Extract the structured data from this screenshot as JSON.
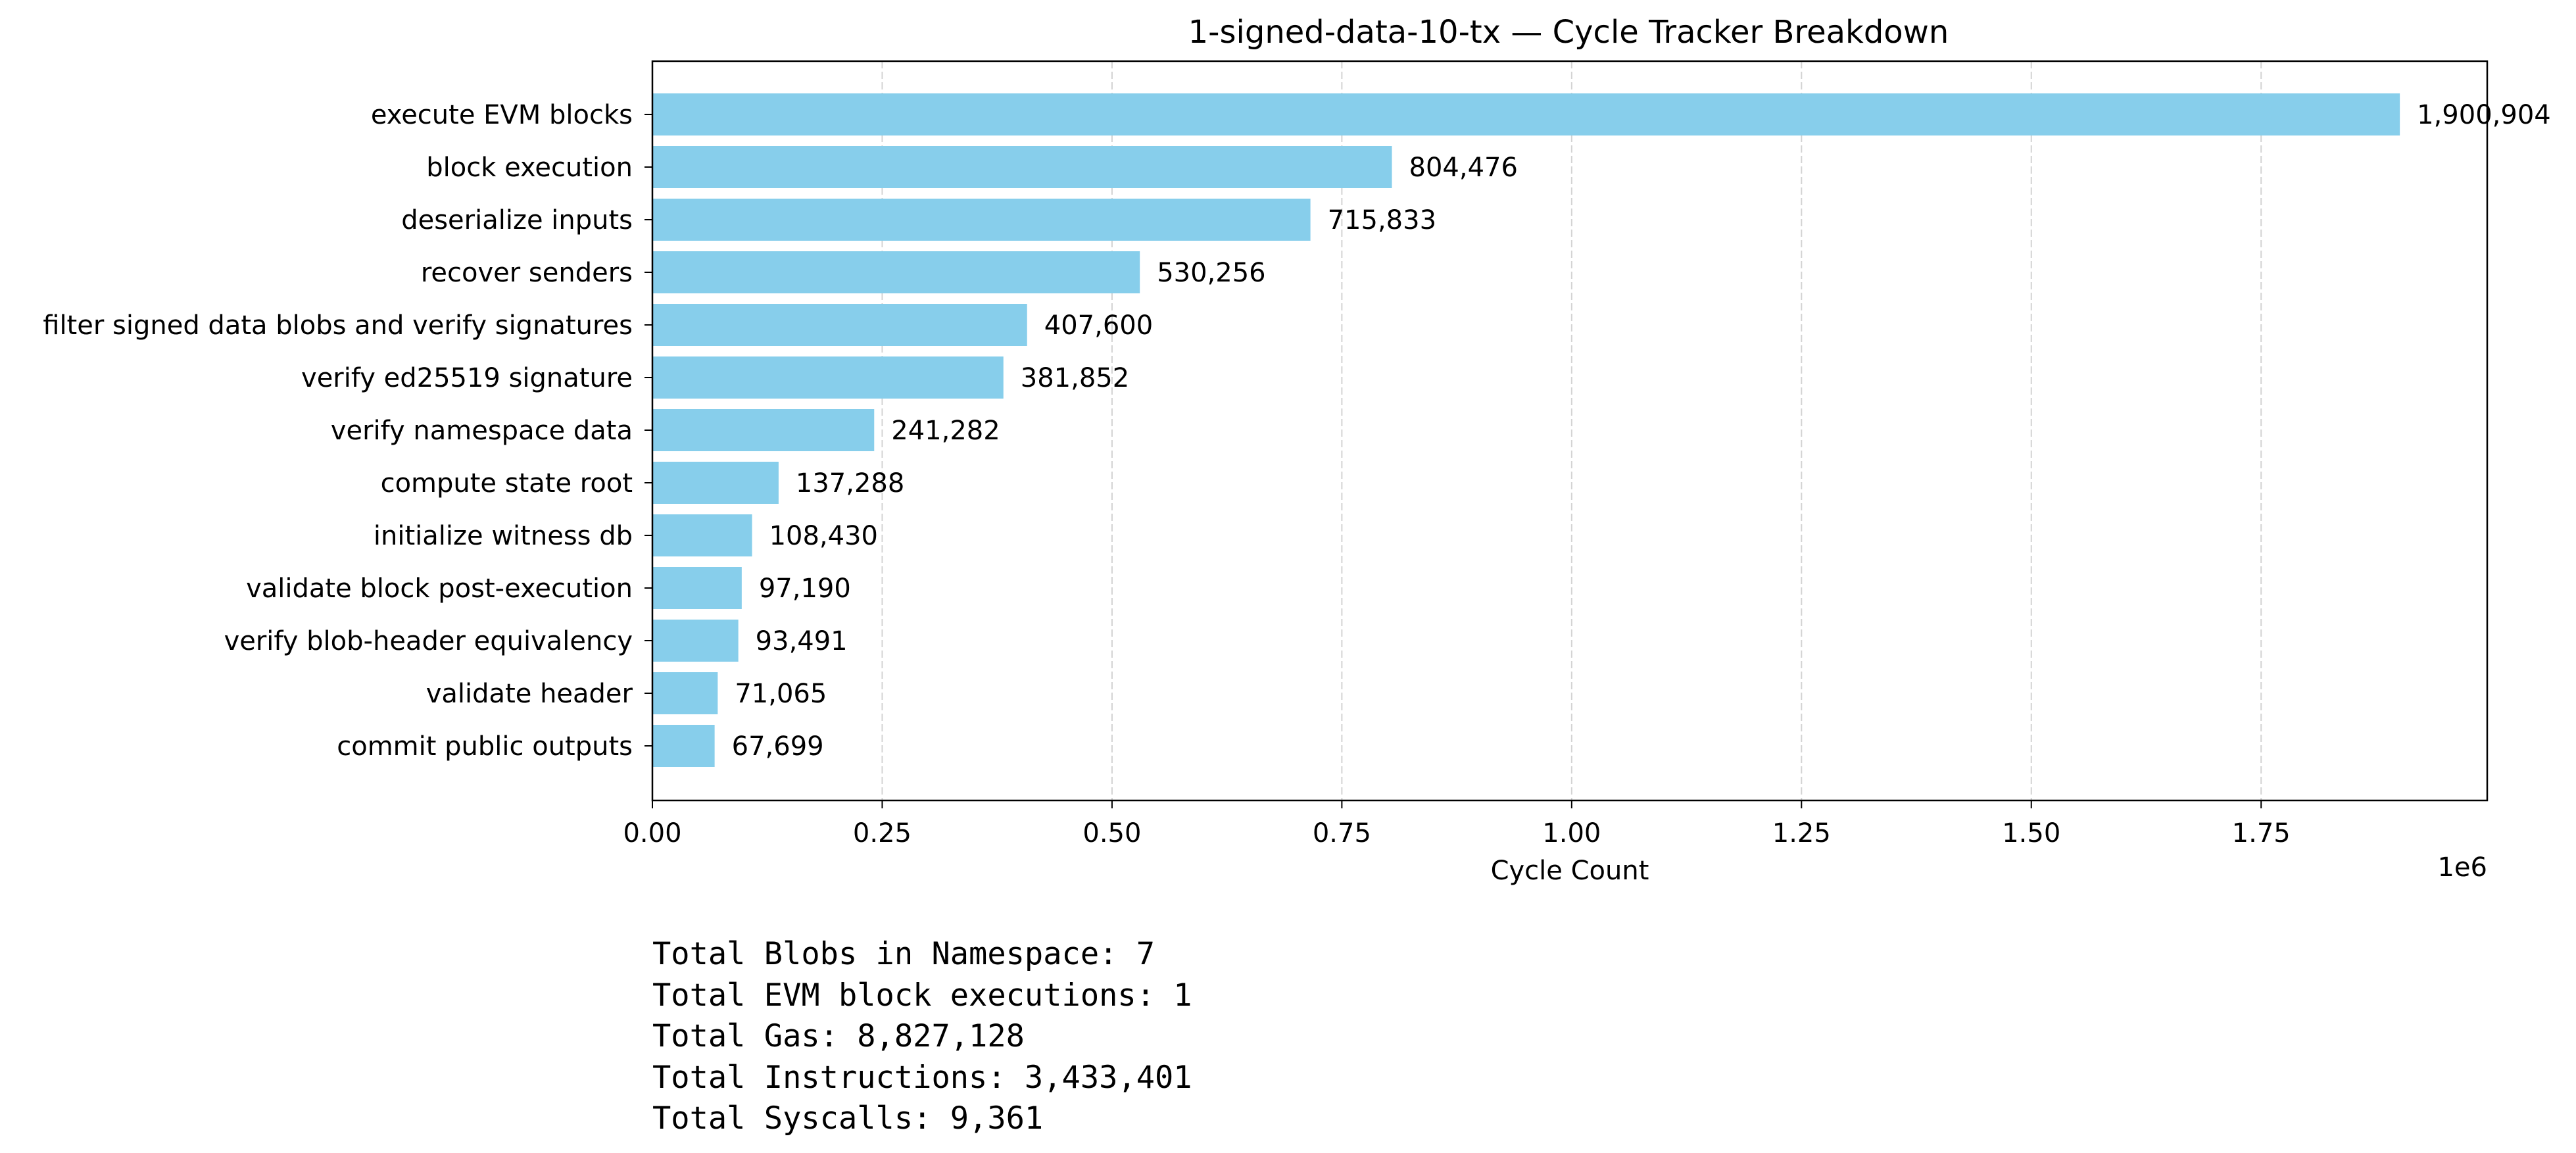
{
  "chart_data": {
    "type": "bar",
    "orientation": "horizontal",
    "title": "1-signed-data-10-tx — Cycle Tracker Breakdown",
    "xlabel": "Cycle Count",
    "ylabel": "",
    "x_offset_text": "1e6",
    "xlim": [
      0,
      1995949
    ],
    "x_ticks": [
      0,
      250000,
      500000,
      750000,
      1000000,
      1250000,
      1500000,
      1750000
    ],
    "x_tick_labels": [
      "0.00",
      "0.25",
      "0.50",
      "0.75",
      "1.00",
      "1.25",
      "1.50",
      "1.75"
    ],
    "grid": "vertical dashed",
    "bar_color": "#87ceeb",
    "categories": [
      "execute EVM blocks",
      "block execution",
      "deserialize inputs",
      "recover senders",
      "filter signed data blobs and verify signatures",
      "verify ed25519 signature",
      "verify namespace data",
      "compute state root",
      "initialize witness db",
      "validate block post-execution",
      "verify blob-header equivalency",
      "validate header",
      "commit public outputs"
    ],
    "values": [
      1900904,
      804476,
      715833,
      530256,
      407600,
      381852,
      241282,
      137288,
      108430,
      97190,
      93491,
      71065,
      67699
    ],
    "value_labels": [
      "1,900,904",
      "804,476",
      "715,833",
      "530,256",
      "407,600",
      "381,852",
      "241,282",
      "137,288",
      "108,430",
      "97,190",
      "93,491",
      "71,065",
      "67,699"
    ]
  },
  "summary": [
    "Total Blobs in Namespace: 7",
    "Total EVM block executions: 1",
    "Total Gas: 8,827,128",
    "Total Instructions: 3,433,401",
    "Total Syscalls: 9,361"
  ]
}
